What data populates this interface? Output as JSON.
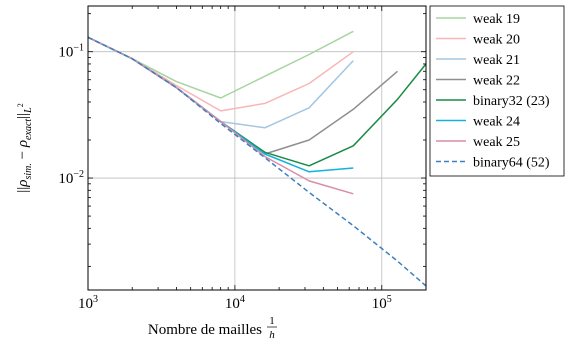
{
  "chart_data": {
    "type": "line",
    "title": "",
    "xlabel": "Nombre de mailles",
    "xlabel_fraction": {
      "numerator": "1",
      "denominator": "h"
    },
    "ylabel": "||ρ̄sim. − ρ̄exact||L²",
    "ylabel_parts": {
      "open": "||",
      "rho1": "ρ",
      "sub1": "sim.",
      "minus": " − ",
      "rho2": "ρ",
      "sub2": "exact",
      "close": "||",
      "sub3": "L",
      "sup3": "2"
    },
    "x_scale": "log",
    "y_scale": "log",
    "xlim": [
      1000,
      200000
    ],
    "ylim": [
      0.0013,
      0.23
    ],
    "x_ticks": [
      {
        "base": "10",
        "exp": "3",
        "value": 1000
      },
      {
        "base": "10",
        "exp": "4",
        "value": 10000
      },
      {
        "base": "10",
        "exp": "5",
        "value": 100000
      }
    ],
    "y_ticks": [
      {
        "base": "10",
        "exp": "−2",
        "value": 0.01
      },
      {
        "base": "10",
        "exp": "−1",
        "value": 0.1
      }
    ],
    "grid": true,
    "legend_position": "outside-right",
    "series": [
      {
        "name": "weak 19",
        "color": "#a6d5a0",
        "dash": false,
        "x": [
          1000,
          2000,
          4000,
          8000,
          16000,
          32000,
          64000
        ],
        "y": [
          0.13,
          0.088,
          0.058,
          0.043,
          0.064,
          0.095,
          0.145
        ]
      },
      {
        "name": "weak 20",
        "color": "#f8b6b6",
        "dash": false,
        "x": [
          1000,
          2000,
          4000,
          8000,
          16000,
          32000,
          64000
        ],
        "y": [
          0.13,
          0.088,
          0.054,
          0.034,
          0.039,
          0.056,
          0.1
        ]
      },
      {
        "name": "weak 21",
        "color": "#a3c6e2",
        "dash": false,
        "x": [
          1000,
          2000,
          4000,
          8000,
          16000,
          32000,
          64000
        ],
        "y": [
          0.13,
          0.088,
          0.052,
          0.028,
          0.025,
          0.036,
          0.085
        ]
      },
      {
        "name": "weak 22",
        "color": "#8f8f8f",
        "dash": false,
        "x": [
          1000,
          2000,
          4000,
          8000,
          16000,
          32000,
          64000,
          128000
        ],
        "y": [
          0.13,
          0.088,
          0.052,
          0.028,
          0.0155,
          0.02,
          0.035,
          0.07
        ]
      },
      {
        "name": "binary32 (23)",
        "color": "#1a8a45",
        "dash": false,
        "x": [
          1000,
          2000,
          4000,
          8000,
          16000,
          32000,
          64000,
          128000,
          200000
        ],
        "y": [
          0.13,
          0.088,
          0.052,
          0.028,
          0.016,
          0.0125,
          0.018,
          0.042,
          0.08
        ]
      },
      {
        "name": "weak 24",
        "color": "#15b1d9",
        "dash": false,
        "x": [
          1000,
          2000,
          4000,
          8000,
          16000,
          32000,
          64000
        ],
        "y": [
          0.13,
          0.088,
          0.052,
          0.028,
          0.0155,
          0.0112,
          0.012
        ]
      },
      {
        "name": "weak 25",
        "color": "#d98cab",
        "dash": false,
        "x": [
          1000,
          2000,
          4000,
          8000,
          16000,
          32000,
          64000
        ],
        "y": [
          0.13,
          0.088,
          0.052,
          0.028,
          0.0148,
          0.0095,
          0.0075
        ]
      },
      {
        "name": "binary64 (52)",
        "color": "#3f80bf",
        "dash": true,
        "x": [
          1000,
          2000,
          4000,
          8000,
          16000,
          32000,
          64000,
          128000,
          200000
        ],
        "y": [
          0.13,
          0.088,
          0.052,
          0.027,
          0.0145,
          0.0077,
          0.0042,
          0.0022,
          0.0014
        ]
      }
    ]
  }
}
